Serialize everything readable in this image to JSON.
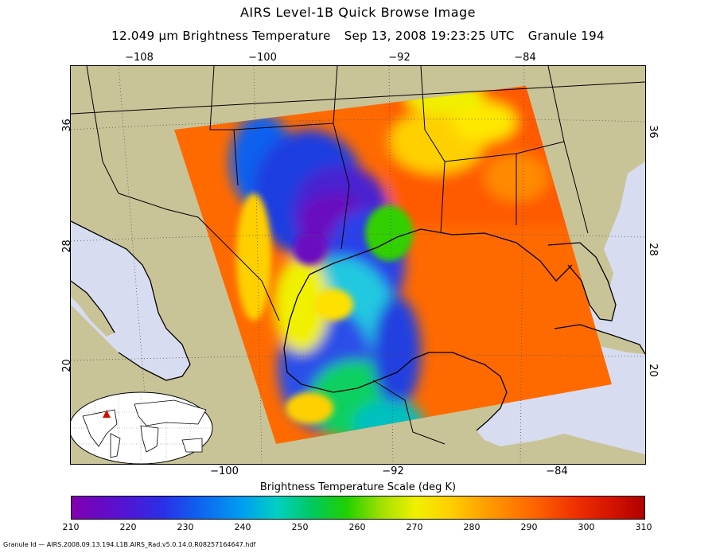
{
  "header": {
    "title": "AIRS Level-1B Quick Browse Image",
    "subtitle_product": "12.049 μm Brightness Temperature",
    "subtitle_time": "Sep 13, 2008 19:23:25 UTC",
    "subtitle_granule": "Granule 194"
  },
  "axes": {
    "top_lon_ticks": [
      "−108",
      "−100",
      "−92",
      "−84"
    ],
    "bottom_lon_ticks": [
      "−100",
      "−92",
      "−84"
    ],
    "left_lat_ticks": [
      "36",
      "28",
      "20"
    ],
    "right_lat_ticks": [
      "36",
      "28",
      "20"
    ]
  },
  "colorbar": {
    "title": "Brightness Temperature Scale (deg K)",
    "ticks": [
      "210",
      "220",
      "230",
      "240",
      "250",
      "260",
      "270",
      "280",
      "290",
      "300",
      "310"
    ],
    "min": 210,
    "max": 310
  },
  "footer": {
    "granule_id": "Granule Id — AIRS.2008.09.13.194.L1B.AIRS_Rad.v5.0.14.0.R08257164647.hdf"
  },
  "colors": {
    "land": "#c8c498",
    "ocean": "#d8dcf0",
    "swath_warm": "#ff6a00",
    "storm_core": "#6a10c0"
  },
  "icons": [
    "globe-inset-icon",
    "location-marker-icon"
  ]
}
